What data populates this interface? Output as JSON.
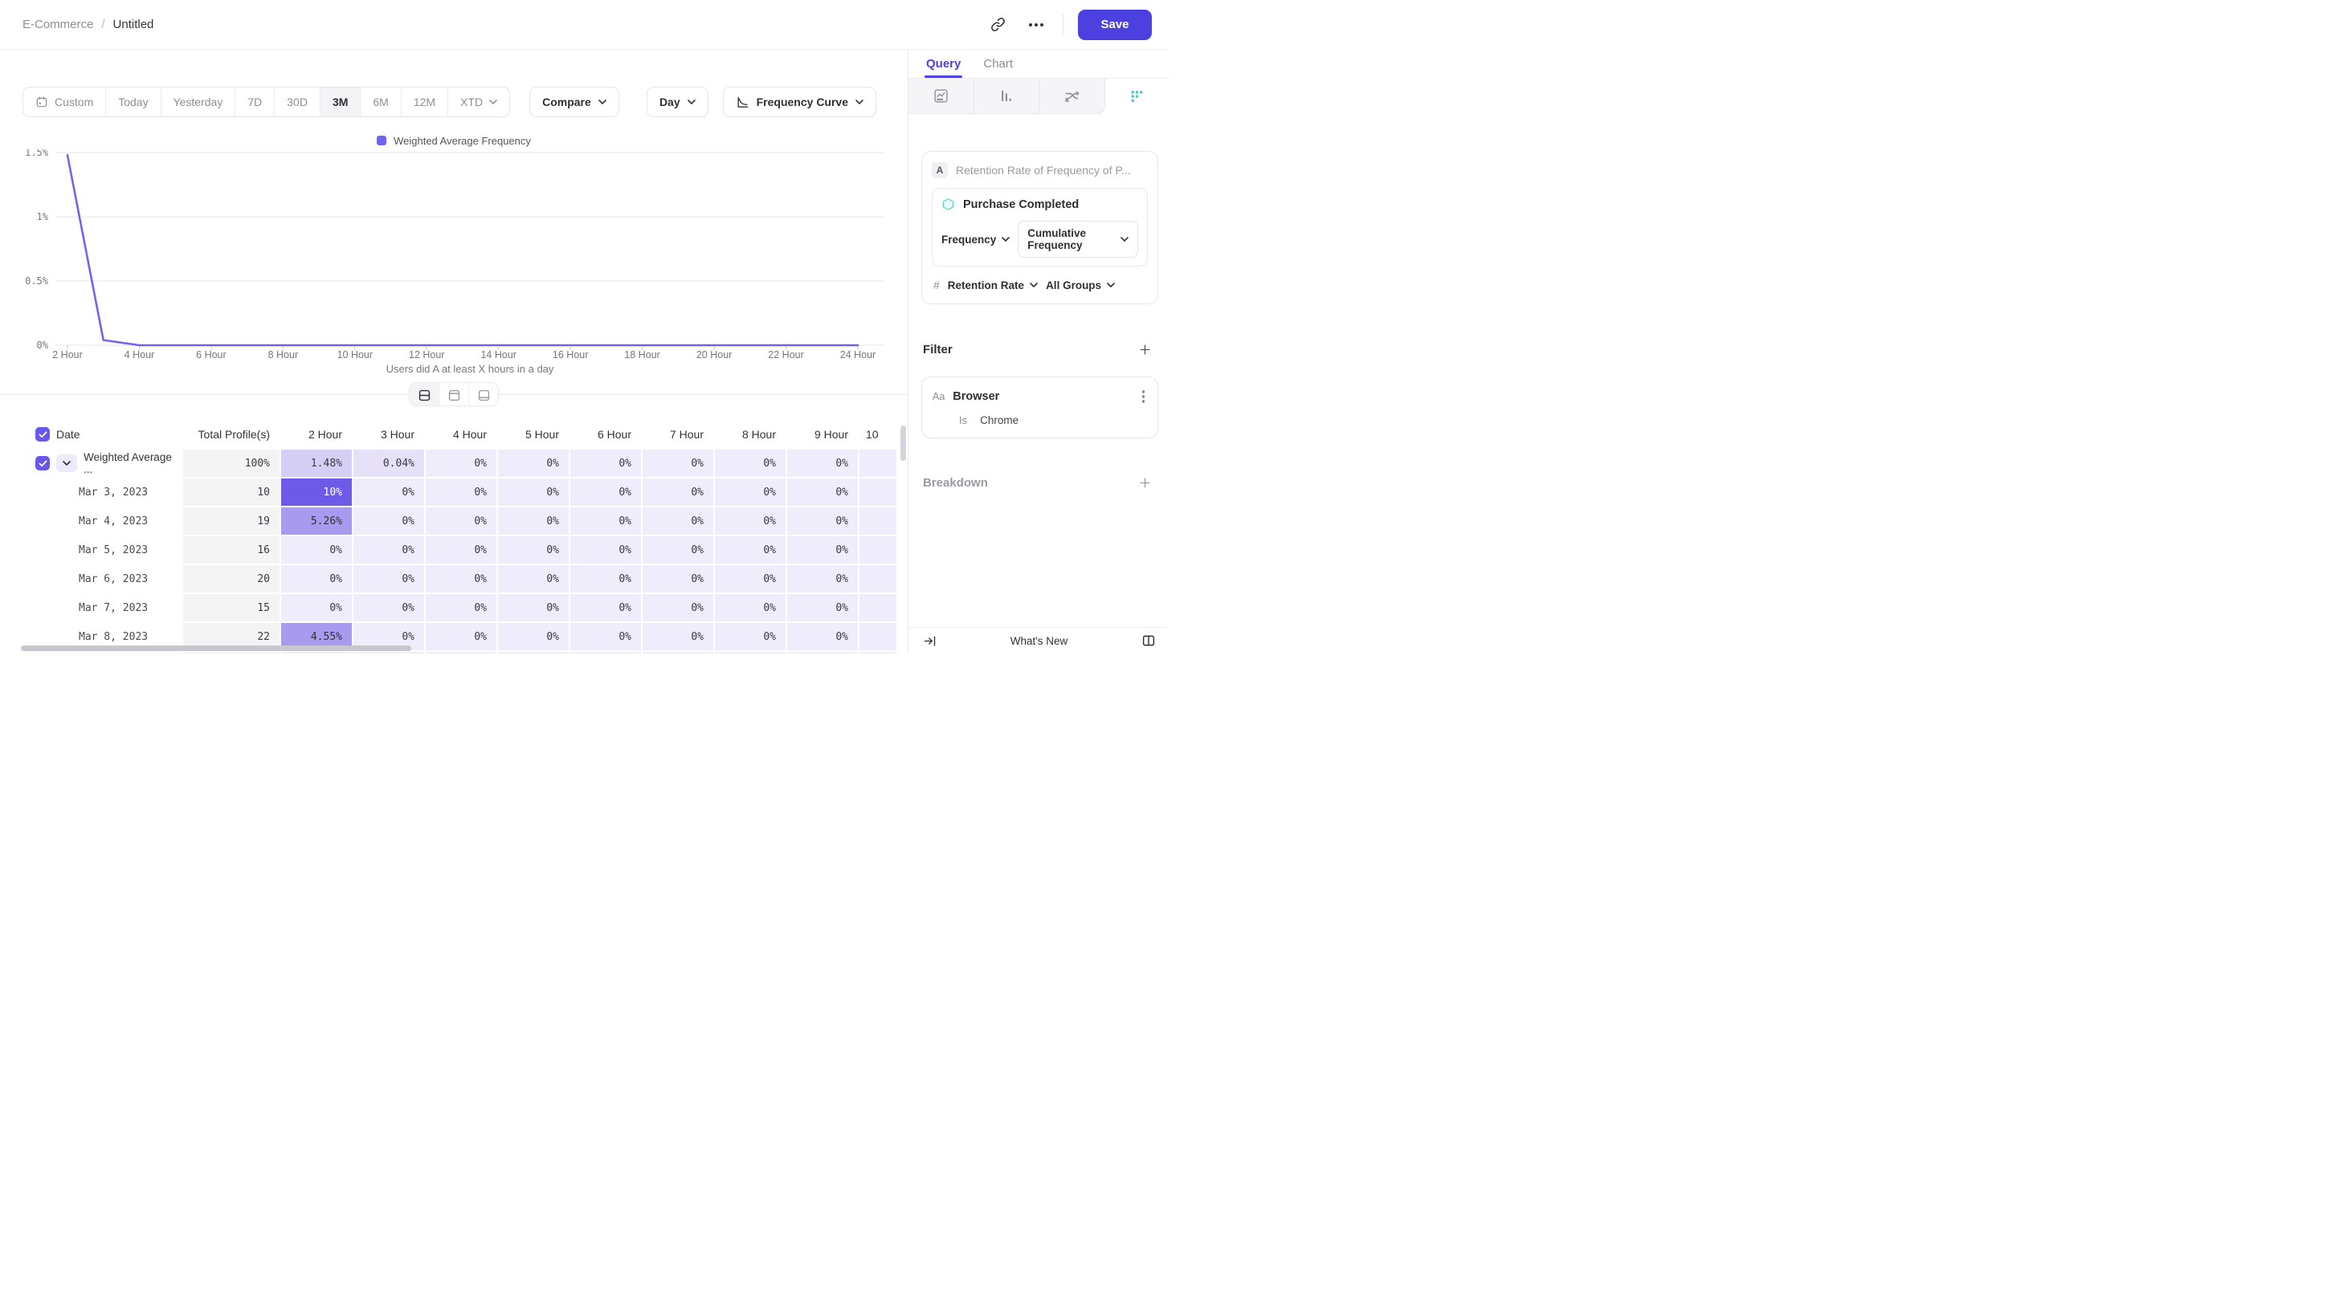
{
  "header": {
    "breadcrumb_parent": "E-Commerce",
    "breadcrumb_sep": "/",
    "breadcrumb_current": "Untitled",
    "save_label": "Save",
    "accent_color": "#4c40e0"
  },
  "toolbar": {
    "ranges": [
      "Custom",
      "Today",
      "Yesterday",
      "7D",
      "30D",
      "3M",
      "6M",
      "12M",
      "XTD"
    ],
    "active_range": "3M",
    "calendar_icon_range": "Custom",
    "dropdown_ranges": [
      "XTD"
    ],
    "compare_label": "Compare",
    "granularity_label": "Day",
    "view_label": "Frequency Curve"
  },
  "chart_data": {
    "type": "line",
    "title": "",
    "xlabel": "Users did A at least X hours in a day",
    "ylabel": "",
    "ylim": [
      0,
      1.5
    ],
    "grid": "horizontal",
    "legend_position": "top-center",
    "y_tick_labels": [
      "1.5%",
      "1%",
      "0.5%",
      "0%"
    ],
    "x_tick_labels": [
      "2 Hour",
      "4 Hour",
      "6 Hour",
      "8 Hour",
      "10 Hour",
      "12 Hour",
      "14 Hour",
      "16 Hour",
      "18 Hour",
      "20 Hour",
      "22 Hour",
      "24 Hour"
    ],
    "series": [
      {
        "name": "Weighted Average Frequency",
        "color": "#7165ef",
        "x_hours": [
          2,
          3,
          4,
          5,
          6,
          7,
          8,
          9,
          10,
          11,
          12,
          13,
          14,
          15,
          16,
          17,
          18,
          19,
          20,
          21,
          22,
          23,
          24
        ],
        "values": [
          1.48,
          0.04,
          0,
          0,
          0,
          0,
          0,
          0,
          0,
          0,
          0,
          0,
          0,
          0,
          0,
          0,
          0,
          0,
          0,
          0,
          0,
          0,
          0
        ]
      }
    ]
  },
  "layout_toggles": {
    "options": [
      "split-view",
      "chart-only",
      "table-only"
    ],
    "active": "split-view"
  },
  "table": {
    "select_all_checked": true,
    "columns": [
      "Date",
      "Total Profile(s)",
      "2 Hour",
      "3 Hour",
      "4 Hour",
      "5 Hour",
      "6 Hour",
      "7 Hour",
      "8 Hour",
      "9 Hour",
      "10"
    ],
    "rows": [
      {
        "label": "Weighted Average ...",
        "checked": true,
        "expandable": true,
        "total": "100%",
        "values": [
          "1.48%",
          "0.04%",
          "0%",
          "0%",
          "0%",
          "0%",
          "0%",
          "0%"
        ]
      },
      {
        "label": "Mar 3, 2023",
        "total": "10",
        "values": [
          "10%",
          "0%",
          "0%",
          "0%",
          "0%",
          "0%",
          "0%",
          "0%"
        ]
      },
      {
        "label": "Mar 4, 2023",
        "total": "19",
        "values": [
          "5.26%",
          "0%",
          "0%",
          "0%",
          "0%",
          "0%",
          "0%",
          "0%"
        ]
      },
      {
        "label": "Mar 5, 2023",
        "total": "16",
        "values": [
          "0%",
          "0%",
          "0%",
          "0%",
          "0%",
          "0%",
          "0%",
          "0%"
        ]
      },
      {
        "label": "Mar 6, 2023",
        "total": "20",
        "values": [
          "0%",
          "0%",
          "0%",
          "0%",
          "0%",
          "0%",
          "0%",
          "0%"
        ]
      },
      {
        "label": "Mar 7, 2023",
        "total": "15",
        "values": [
          "0%",
          "0%",
          "0%",
          "0%",
          "0%",
          "0%",
          "0%",
          "0%"
        ]
      },
      {
        "label": "Mar 8, 2023",
        "total": "22",
        "values": [
          "4.55%",
          "0%",
          "0%",
          "0%",
          "0%",
          "0%",
          "0%",
          "0%"
        ]
      }
    ],
    "heat_colors": {
      "dark": "#6e5ae9",
      "mid": "#a79aef",
      "lightmid": "#d6cff5",
      "light": "#e6e1f9",
      "faint": "#efecfb"
    }
  },
  "panel": {
    "tabs": [
      "Query",
      "Chart"
    ],
    "active_tab": "Query",
    "chart_types": [
      "insights",
      "bar",
      "flows",
      "frequency"
    ],
    "active_chart_type": "frequency",
    "query": {
      "label_badge": "A",
      "title": "Retention Rate of Frequency of P...",
      "event": "Purchase Completed",
      "frequency_dropdown": "Frequency",
      "frequency_mode_dropdown": "Cumulative Frequency",
      "measure_prefix": "#",
      "measure_dropdown": "Retention Rate",
      "group_dropdown": "All Groups"
    },
    "filter": {
      "heading": "Filter",
      "property_type": "Aa",
      "property": "Browser",
      "operator": "Is",
      "value": "Chrome"
    },
    "breakdown_heading": "Breakdown",
    "footer": {
      "whats_new": "What's New"
    }
  }
}
